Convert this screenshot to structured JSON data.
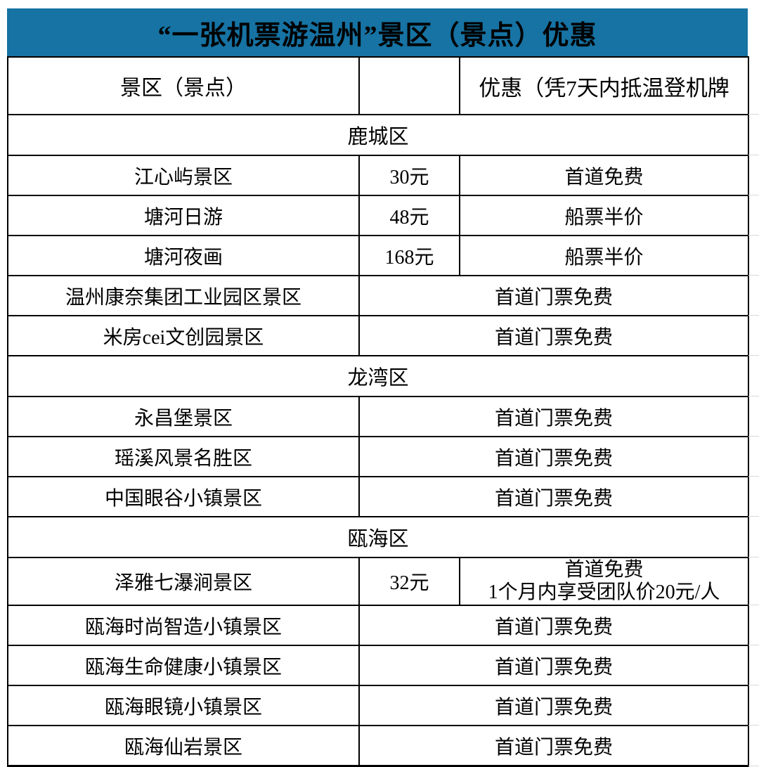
{
  "title": "“一张机票游温州”景区（景点）优惠",
  "header": {
    "scenic": "景区（景点）",
    "price": "",
    "discount": "优惠（凭7天内抵温登机牌"
  },
  "colors": {
    "title_bg": "#1673A3",
    "title_text": "#000000",
    "border": "#000000",
    "grid_continuation": "#d9d9d9"
  },
  "rows": [
    {
      "type": "section",
      "name": "鹿城区"
    },
    {
      "type": "item",
      "name": "江心屿景区",
      "price": "30元",
      "discount": "首道免费"
    },
    {
      "type": "item",
      "name": "塘河日游",
      "price": "48元",
      "discount": "船票半价"
    },
    {
      "type": "item",
      "name": "塘河夜画",
      "price": "168元",
      "discount": "船票半价"
    },
    {
      "type": "item_merged",
      "name": "温州康奈集团工业园区景区",
      "discount": "首道门票免费"
    },
    {
      "type": "item_merged",
      "name": "米房cei文创园景区",
      "discount": "首道门票免费"
    },
    {
      "type": "section",
      "name": "龙湾区"
    },
    {
      "type": "item_merged",
      "name": "永昌堡景区",
      "discount": "首道门票免费"
    },
    {
      "type": "item_merged",
      "name": "瑶溪风景名胜区",
      "discount": "首道门票免费"
    },
    {
      "type": "item_merged",
      "name": "中国眼谷小镇景区",
      "discount": "首道门票免费"
    },
    {
      "type": "section",
      "name": "瓯海区"
    },
    {
      "type": "item",
      "name": "泽雅七瀑涧景区",
      "price": "32元",
      "discount": "首道免费",
      "discount_line2": "1个月内享受团队价20元/人"
    },
    {
      "type": "item_merged",
      "name": "瓯海时尚智造小镇景区",
      "discount": "首道门票免费"
    },
    {
      "type": "item_merged",
      "name": "瓯海生命健康小镇景区",
      "discount": "首道门票免费"
    },
    {
      "type": "item_merged",
      "name": "瓯海眼镜小镇景区",
      "discount": "首道门票免费"
    },
    {
      "type": "item_merged",
      "name": "瓯海仙岩景区",
      "discount": "首道门票免费"
    }
  ]
}
